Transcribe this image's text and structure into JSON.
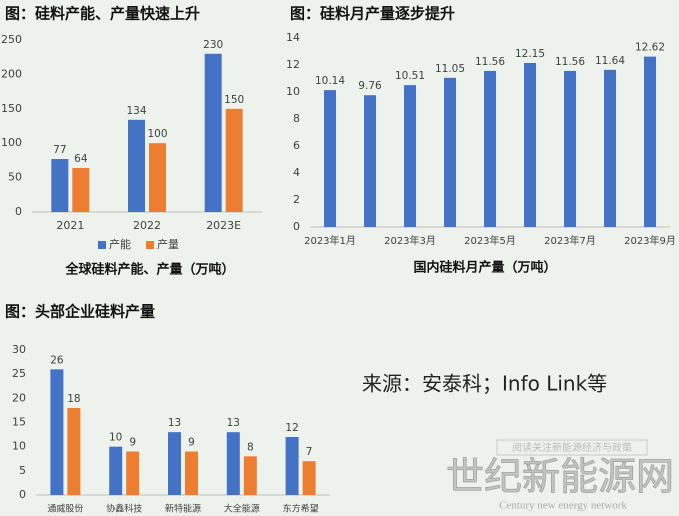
{
  "chart_data": [
    {
      "type": "bar",
      "title": "图：硅料产能、产量快速上升",
      "caption": "全球硅料产能、产量（万吨）",
      "categories": [
        "2021",
        "2022",
        "2023E"
      ],
      "series": [
        {
          "name": "产能",
          "color": "#4472c4",
          "values": [
            77,
            134,
            230
          ]
        },
        {
          "name": "产量",
          "color": "#ed7d31",
          "values": [
            64,
            100,
            150
          ]
        }
      ],
      "ylim": [
        0,
        250
      ],
      "yticks": [
        0,
        50,
        100,
        150,
        200,
        250
      ],
      "grid": false,
      "legend": "bottom"
    },
    {
      "type": "bar",
      "title": "图：硅料月产量逐步提升",
      "caption": "国内硅料月产量（万吨）",
      "categories": [
        "2023年1月",
        null,
        "2023年3月",
        null,
        "2023年5月",
        null,
        "2023年7月",
        null,
        "2023年9月"
      ],
      "series": [
        {
          "color": "#4472c4",
          "values": [
            10.14,
            9.76,
            10.51,
            11.05,
            11.56,
            12.15,
            11.56,
            11.64,
            12.62
          ]
        }
      ],
      "ylim": [
        0,
        14
      ],
      "yticks": [
        0,
        2,
        4,
        6,
        8,
        10,
        12,
        14
      ],
      "grid": false
    },
    {
      "type": "bar",
      "title": "图：头部企业硅料产量",
      "categories": [
        "通威股份",
        "协鑫科技",
        "新特能源",
        "大全能源",
        "东方希望"
      ],
      "series": [
        {
          "color": "#4472c4",
          "values": [
            26,
            10,
            13,
            13,
            12
          ]
        },
        {
          "color": "#ed7d31",
          "values": [
            18,
            9,
            9,
            8,
            7
          ]
        }
      ],
      "ylim": [
        0,
        30
      ],
      "yticks": [
        0,
        5,
        10,
        15,
        20,
        25,
        30
      ],
      "grid": false
    }
  ],
  "source": "来源：安泰科；Info Link等",
  "watermark": {
    "slogan": "阅读关注新能源经济与政策",
    "name": "世纪新能源网",
    "english": "Century new energy network"
  }
}
